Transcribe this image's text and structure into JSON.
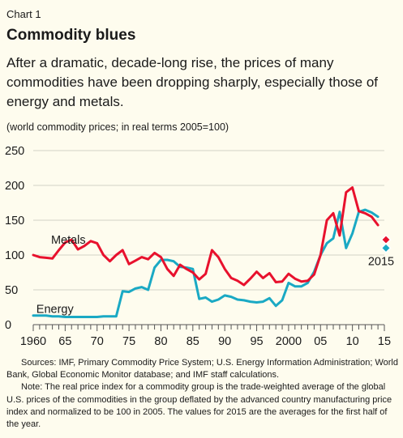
{
  "header": {
    "kicker": "Chart 1",
    "title": "Commodity blues",
    "subtitle": "After a dramatic, decade-long rise, the prices of many commodities have been dropping sharply, especially those of energy and metals.",
    "units": "(world commodity prices; in real terms 2005=100)"
  },
  "footer": {
    "sources": "Sources: IMF, Primary Commodity Price System; U.S. Energy Information Administration; World Bank, Global Economic Monitor database; and IMF staff calculations.",
    "note": "Note: The real price index for a commodity group is the trade-weighted average of the global U.S. prices of the commodities in the group deflated by the advanced country manufacturing price index and normalized to be 100 in 2005. The values for 2015 are the averages for the first half of the year."
  },
  "colors": {
    "metals": "#e8112d",
    "energy": "#1aa9c4",
    "background": "#fefcee",
    "grid": "#d2d2c6"
  },
  "chart_data": {
    "type": "line",
    "title": "Commodity blues",
    "ylim": [
      0,
      250
    ],
    "yticks": [
      0,
      50,
      100,
      150,
      200,
      250
    ],
    "xlim": [
      1960,
      2015
    ],
    "xticks": [
      1960,
      1965,
      1970,
      1975,
      1980,
      1985,
      1990,
      1995,
      2000,
      2005,
      2010,
      2015
    ],
    "xtick_labels": [
      "1960",
      "65",
      "70",
      "75",
      "80",
      "85",
      "90",
      "95",
      "2000",
      "05",
      "10",
      "15"
    ],
    "grid": true,
    "x": [
      1960,
      1961,
      1962,
      1963,
      1964,
      1965,
      1966,
      1967,
      1968,
      1969,
      1970,
      1971,
      1972,
      1973,
      1974,
      1975,
      1976,
      1977,
      1978,
      1979,
      1980,
      1981,
      1982,
      1983,
      1984,
      1985,
      1986,
      1987,
      1988,
      1989,
      1990,
      1991,
      1992,
      1993,
      1994,
      1995,
      1996,
      1997,
      1998,
      1999,
      2000,
      2001,
      2002,
      2003,
      2004,
      2005,
      2006,
      2007,
      2008,
      2009,
      2010,
      2011,
      2012,
      2013,
      2014
    ],
    "series": [
      {
        "name": "Metals",
        "values": [
          100,
          97,
          96,
          95,
          107,
          118,
          122,
          108,
          113,
          120,
          117,
          100,
          91,
          100,
          107,
          87,
          92,
          97,
          94,
          103,
          97,
          80,
          70,
          86,
          80,
          75,
          65,
          73,
          107,
          97,
          80,
          67,
          63,
          57,
          66,
          76,
          67,
          74,
          61,
          62,
          73,
          66,
          62,
          63,
          72,
          100,
          150,
          160,
          128,
          190,
          197,
          163,
          160,
          155,
          143
        ]
      },
      {
        "name": "Energy",
        "values": [
          13,
          13,
          13,
          12,
          12,
          11,
          11,
          11,
          11,
          11,
          11,
          12,
          12,
          12,
          48,
          47,
          52,
          54,
          50,
          82,
          93,
          93,
          91,
          83,
          82,
          80,
          37,
          39,
          33,
          36,
          42,
          40,
          36,
          35,
          33,
          32,
          33,
          38,
          27,
          35,
          60,
          55,
          55,
          60,
          76,
          100,
          117,
          124,
          162,
          110,
          131,
          162,
          165,
          161,
          155
        ]
      }
    ],
    "markers": {
      "label": "2015",
      "x": 2015,
      "points": [
        {
          "series": "Metals",
          "value": 122
        },
        {
          "series": "Energy",
          "value": 110
        }
      ]
    },
    "series_labels": {
      "Metals": "Metals",
      "Energy": "Energy"
    }
  }
}
